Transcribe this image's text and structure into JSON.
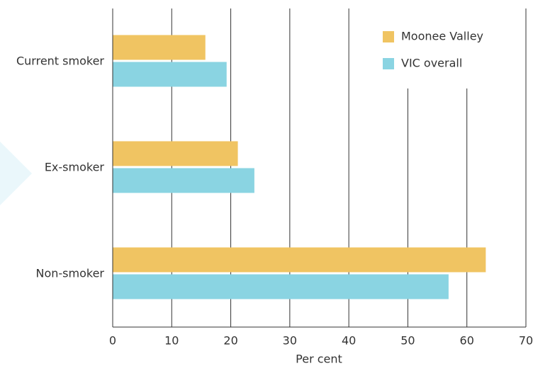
{
  "chart_data": {
    "type": "hbar",
    "categories": [
      "Current smoker",
      "Ex-smoker",
      "Non-smoker"
    ],
    "series": [
      {
        "name": "Moonee Valley",
        "color": "#f0c462",
        "values": [
          15.7,
          21.2,
          63.2
        ]
      },
      {
        "name": "VIC overall",
        "color": "#8ad4e2",
        "values": [
          19.3,
          24.0,
          56.9
        ]
      }
    ],
    "xlabel": "Per cent",
    "xlim": [
      0,
      70
    ],
    "xticks": [
      0,
      10,
      20,
      30,
      40,
      50,
      60,
      70
    ],
    "grid": true,
    "legend": "upper right"
  }
}
